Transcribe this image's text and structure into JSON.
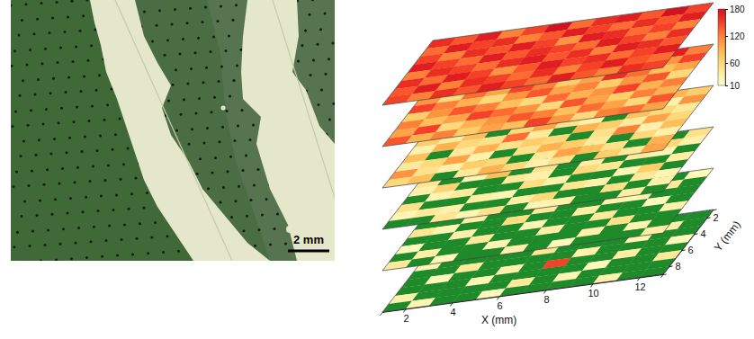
{
  "image": {
    "scale_bar_label": "2 mm"
  },
  "chart_data": {
    "type": "heatmap",
    "xlabel": "X (mm)",
    "ylabel": "Y (mm)",
    "x": [
      1.5,
      2.5,
      3.5,
      4.5,
      5.5,
      6.5,
      7.5,
      8.5,
      9.5,
      10.5,
      11.5,
      12.5
    ],
    "y": [
      1.5,
      2.5,
      3.5,
      4.5,
      5.5,
      6.5,
      7.5,
      8.5
    ],
    "xlim": [
      1,
      13
    ],
    "ylim": [
      1,
      9
    ],
    "xticks": [
      2,
      4,
      6,
      8,
      10,
      12
    ],
    "yticks": [
      2,
      4,
      6,
      8
    ],
    "layers": [
      [
        [
          0,
          30,
          0,
          0,
          25,
          0,
          0,
          0,
          40,
          0,
          0,
          0
        ],
        [
          0,
          0,
          0,
          35,
          0,
          0,
          20,
          0,
          0,
          0,
          30,
          0
        ],
        [
          25,
          0,
          0,
          0,
          0,
          45,
          0,
          0,
          0,
          25,
          0,
          0
        ],
        [
          0,
          0,
          40,
          0,
          0,
          0,
          0,
          30,
          0,
          0,
          0,
          20
        ],
        [
          0,
          20,
          0,
          0,
          30,
          0,
          150,
          0,
          0,
          35,
          0,
          0
        ],
        [
          0,
          0,
          0,
          25,
          0,
          0,
          0,
          0,
          20,
          0,
          0,
          40
        ],
        [
          30,
          0,
          0,
          0,
          0,
          40,
          0,
          25,
          0,
          0,
          0,
          0
        ],
        [
          0,
          25,
          0,
          0,
          20,
          0,
          0,
          0,
          0,
          30,
          0,
          0
        ]
      ],
      [
        [
          0,
          40,
          25,
          0,
          30,
          0,
          0,
          50,
          30,
          0,
          0,
          20
        ],
        [
          30,
          0,
          0,
          45,
          0,
          60,
          25,
          0,
          0,
          0,
          40,
          0
        ],
        [
          0,
          0,
          35,
          0,
          0,
          40,
          0,
          0,
          30,
          25,
          0,
          0
        ],
        [
          45,
          25,
          0,
          0,
          55,
          0,
          0,
          35,
          0,
          0,
          20,
          0
        ],
        [
          0,
          0,
          30,
          0,
          0,
          25,
          0,
          0,
          40,
          0,
          0,
          30
        ],
        [
          20,
          0,
          0,
          40,
          0,
          0,
          35,
          0,
          0,
          50,
          0,
          0
        ],
        [
          0,
          35,
          0,
          0,
          25,
          0,
          0,
          0,
          30,
          0,
          25,
          0
        ],
        [
          40,
          0,
          20,
          0,
          0,
          30,
          0,
          20,
          0,
          0,
          0,
          35
        ]
      ],
      [
        [
          60,
          40,
          0,
          30,
          70,
          25,
          0,
          45,
          80,
          30,
          0,
          50
        ],
        [
          0,
          30,
          55,
          0,
          35,
          0,
          40,
          0,
          25,
          0,
          60,
          30
        ],
        [
          45,
          0,
          25,
          80,
          0,
          50,
          0,
          35,
          0,
          40,
          25,
          0
        ],
        [
          30,
          65,
          0,
          0,
          40,
          30,
          0,
          60,
          45,
          0,
          0,
          35
        ],
        [
          0,
          25,
          40,
          0,
          0,
          55,
          30,
          0,
          0,
          25,
          70,
          0
        ],
        [
          50,
          0,
          0,
          35,
          25,
          0,
          0,
          45,
          30,
          0,
          40,
          25
        ],
        [
          25,
          40,
          30,
          0,
          0,
          35,
          60,
          0,
          0,
          50,
          0,
          30
        ],
        [
          0,
          0,
          45,
          25,
          50,
          0,
          25,
          30,
          0,
          0,
          35,
          0
        ]
      ],
      [
        [
          90,
          60,
          40,
          110,
          70,
          30,
          80,
          120,
          60,
          40,
          90,
          70
        ],
        [
          50,
          100,
          30,
          60,
          0,
          80,
          40,
          70,
          100,
          50,
          30,
          110
        ],
        [
          70,
          40,
          80,
          0,
          60,
          100,
          50,
          30,
          0,
          80,
          60,
          40
        ],
        [
          30,
          90,
          60,
          50,
          130,
          40,
          0,
          90,
          70,
          40,
          100,
          60
        ],
        [
          80,
          0,
          40,
          90,
          50,
          70,
          60,
          0,
          50,
          120,
          30,
          80
        ],
        [
          40,
          60,
          100,
          30,
          0,
          50,
          90,
          70,
          40,
          0,
          60,
          30
        ],
        [
          110,
          50,
          30,
          70,
          60,
          0,
          40,
          100,
          80,
          50,
          0,
          90
        ],
        [
          60,
          80,
          0,
          40,
          90,
          60,
          30,
          50,
          0,
          70,
          40,
          100
        ]
      ],
      [
        [
          130,
          100,
          150,
          90,
          120,
          160,
          110,
          80,
          140,
          100,
          170,
          120
        ],
        [
          90,
          140,
          70,
          120,
          100,
          80,
          150,
          130,
          90,
          60,
          110,
          150
        ],
        [
          110,
          60,
          130,
          100,
          150,
          120,
          70,
          100,
          160,
          130,
          80,
          100
        ],
        [
          150,
          120,
          90,
          60,
          110,
          140,
          100,
          120,
          70,
          110,
          140,
          60
        ],
        [
          70,
          110,
          140,
          120,
          80,
          60,
          130,
          90,
          110,
          150,
          90,
          120
        ],
        [
          120,
          80,
          100,
          150,
          130,
          110,
          60,
          140,
          100,
          70,
          120,
          90
        ],
        [
          100,
          150,
          60,
          90,
          110,
          140,
          120,
          80,
          130,
          100,
          60,
          140
        ],
        [
          140,
          90,
          120,
          70,
          100,
          80,
          150,
          110,
          60,
          120,
          130,
          100
        ]
      ],
      [
        [
          160,
          140,
          170,
          120,
          150,
          180,
          130,
          160,
          170,
          140,
          180,
          150
        ],
        [
          130,
          170,
          150,
          160,
          120,
          140,
          170,
          150,
          130,
          160,
          140,
          170
        ],
        [
          150,
          120,
          160,
          140,
          170,
          150,
          110,
          170,
          160,
          130,
          150,
          120
        ],
        [
          170,
          150,
          130,
          170,
          140,
          160,
          150,
          130,
          170,
          150,
          120,
          160
        ],
        [
          120,
          160,
          150,
          130,
          160,
          170,
          140,
          160,
          120,
          170,
          160,
          140
        ],
        [
          160,
          130,
          170,
          150,
          110,
          140,
          170,
          150,
          160,
          130,
          150,
          170
        ],
        [
          140,
          170,
          120,
          160,
          150,
          130,
          160,
          120,
          150,
          170,
          140,
          130
        ],
        [
          150,
          120,
          160,
          140,
          170,
          150,
          130,
          170,
          140,
          120,
          160,
          150
        ]
      ]
    ],
    "color_range": [
      10,
      180
    ],
    "color_ticks": [
      10,
      60,
      120,
      180
    ]
  }
}
